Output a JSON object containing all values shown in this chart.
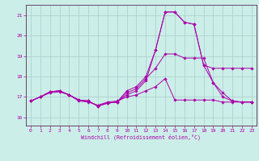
{
  "xlabel": "Windchill (Refroidissement éolien,°C)",
  "bg_color": "#cceee8",
  "grid_color": "#aacccc",
  "line_color": "#aa00aa",
  "spine_color": "#664466",
  "x_ticks": [
    0,
    1,
    2,
    3,
    4,
    5,
    6,
    7,
    8,
    9,
    10,
    11,
    12,
    13,
    14,
    15,
    16,
    17,
    18,
    19,
    20,
    21,
    22,
    23
  ],
  "y_ticks": [
    16,
    17,
    18,
    19,
    20,
    21
  ],
  "xlim": [
    -0.5,
    23.5
  ],
  "ylim": [
    15.6,
    21.5
  ],
  "lines": [
    {
      "x": [
        0,
        1,
        2,
        3,
        4,
        5,
        6,
        7,
        8,
        9,
        10,
        11,
        12,
        13,
        14,
        15,
        16,
        17,
        18,
        19,
        20,
        21,
        22,
        23
      ],
      "y": [
        16.8,
        17.0,
        17.2,
        17.25,
        17.1,
        16.8,
        16.75,
        16.6,
        16.75,
        16.8,
        17.0,
        17.1,
        17.3,
        17.5,
        17.9,
        16.85,
        16.85,
        16.85,
        16.85,
        16.85,
        16.75,
        16.75,
        16.75,
        16.75
      ]
    },
    {
      "x": [
        0,
        1,
        2,
        3,
        4,
        5,
        6,
        7,
        8,
        9,
        10,
        11,
        12,
        13,
        14,
        15,
        16,
        17,
        18,
        19,
        20,
        21,
        22,
        23
      ],
      "y": [
        16.8,
        17.0,
        17.25,
        17.3,
        17.1,
        16.85,
        16.8,
        16.55,
        16.7,
        16.75,
        17.1,
        17.3,
        17.8,
        19.3,
        21.15,
        21.15,
        20.65,
        20.55,
        18.55,
        17.7,
        17.2,
        16.8,
        16.75,
        16.75
      ]
    },
    {
      "x": [
        0,
        1,
        2,
        3,
        4,
        5,
        6,
        7,
        8,
        9,
        10,
        11,
        12,
        13,
        14,
        15,
        16,
        17,
        18,
        19,
        20,
        21,
        22,
        23
      ],
      "y": [
        16.8,
        17.0,
        17.25,
        17.3,
        17.1,
        16.85,
        16.8,
        16.55,
        16.7,
        16.75,
        17.3,
        17.5,
        18.0,
        19.3,
        21.15,
        21.15,
        20.65,
        20.55,
        18.55,
        18.4,
        18.4,
        18.4,
        18.4,
        18.4
      ]
    },
    {
      "x": [
        0,
        1,
        2,
        3,
        4,
        5,
        6,
        7,
        8,
        9,
        10,
        11,
        12,
        13,
        14,
        15,
        16,
        17,
        18,
        19,
        20,
        21,
        22,
        23
      ],
      "y": [
        16.8,
        17.0,
        17.25,
        17.3,
        17.1,
        16.85,
        16.8,
        16.55,
        16.7,
        16.75,
        17.2,
        17.4,
        17.9,
        18.4,
        19.1,
        19.1,
        18.9,
        18.9,
        18.9,
        17.7,
        17.0,
        16.8,
        16.75,
        16.75
      ]
    }
  ]
}
